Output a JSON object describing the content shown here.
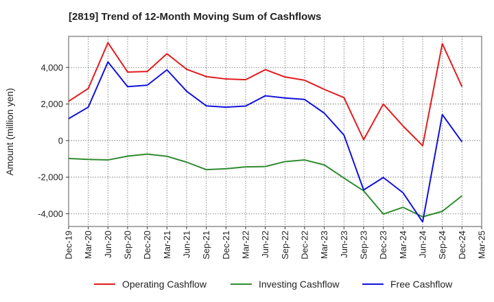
{
  "chart_data": {
    "type": "line",
    "title": "[2819]  Trend of 12-Month Moving Sum of Cashflows",
    "xlabel": "",
    "ylabel": "Amount (million yen)",
    "ylim": [
      -4700,
      5700
    ],
    "yticks": [
      4000,
      2000,
      0,
      -2000,
      -4000
    ],
    "ytick_labels": [
      "4,000",
      "2,000",
      "0",
      "-2,000",
      "-4,000"
    ],
    "categories": [
      "Dec-19",
      "Mar-20",
      "Jun-20",
      "Sep-20",
      "Dec-20",
      "Mar-21",
      "Jun-21",
      "Sep-21",
      "Dec-21",
      "Mar-22",
      "Jun-22",
      "Sep-22",
      "Dec-22",
      "Mar-23",
      "Jun-23",
      "Sep-23",
      "Dec-23",
      "Mar-24",
      "Jun-24",
      "Sep-24",
      "Dec-24",
      "Mar-25"
    ],
    "grid": true,
    "legend_position": "bottom",
    "series": [
      {
        "name": "Operating Cashflow",
        "color": "#e31a1c",
        "values": [
          2150,
          2850,
          5350,
          3750,
          3780,
          4750,
          3900,
          3500,
          3370,
          3330,
          3880,
          3480,
          3300,
          2800,
          2350,
          50,
          2000,
          800,
          -280,
          5300,
          2950,
          null
        ]
      },
      {
        "name": "Investing Cashflow",
        "color": "#2e8b2e",
        "values": [
          -980,
          -1030,
          -1060,
          -850,
          -740,
          -860,
          -1180,
          -1590,
          -1540,
          -1440,
          -1420,
          -1150,
          -1060,
          -1330,
          -2050,
          -2750,
          -4020,
          -3650,
          -4170,
          -3870,
          -3020,
          null
        ]
      },
      {
        "name": "Free Cashflow",
        "color": "#1010dd",
        "values": [
          1200,
          1830,
          4300,
          2950,
          3030,
          3870,
          2700,
          1900,
          1830,
          1890,
          2450,
          2330,
          2250,
          1500,
          300,
          -2700,
          -2020,
          -2850,
          -4450,
          1420,
          -70,
          null
        ]
      }
    ]
  }
}
